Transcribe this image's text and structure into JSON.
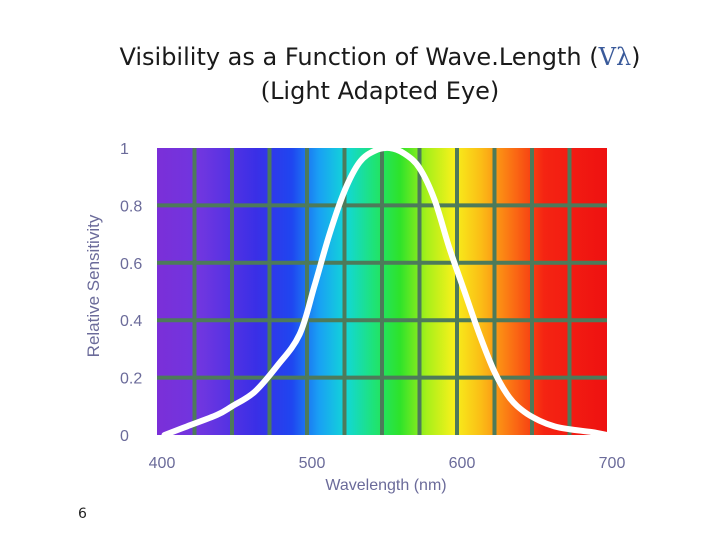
{
  "slide": {
    "title_line1_main": "Visibility as a Function of Wave.Length (",
    "title_line1_symbol": "Vλ",
    "title_line1_close": ")",
    "title_line2_open": "(",
    "title_line2_main": "Light Adapted Eye)",
    "slide_number": "6"
  },
  "chart_data": {
    "type": "line",
    "title": "",
    "xlabel": "Wavelength (nm)",
    "ylabel": "Relative Sensitivity",
    "xlim": [
      400,
      700
    ],
    "ylim": [
      0,
      1
    ],
    "x_ticks": [
      400,
      500,
      600,
      700
    ],
    "x_tick_labels": [
      "400",
      "500",
      "600",
      "700"
    ],
    "y_ticks": [
      0,
      0.2,
      0.4,
      0.6,
      0.8,
      1
    ],
    "y_tick_labels": [
      "0",
      "0.2",
      "0.4",
      "0.6",
      "0.8",
      "1"
    ],
    "grid": true,
    "background": "visible spectrum gradient",
    "series": [
      {
        "color": "#ffffff",
        "x": [
          405,
          420,
          440,
          450,
          465,
          480,
          495,
          505,
          515,
          525,
          535,
          545,
          555,
          565,
          575,
          585,
          595,
          605,
          615,
          625,
          635,
          645,
          655,
          665,
          675,
          690,
          700
        ],
        "y": [
          0.0,
          0.03,
          0.07,
          0.1,
          0.15,
          0.24,
          0.35,
          0.52,
          0.7,
          0.85,
          0.95,
          0.99,
          1.0,
          0.98,
          0.93,
          0.82,
          0.65,
          0.5,
          0.35,
          0.22,
          0.13,
          0.08,
          0.05,
          0.03,
          0.02,
          0.01,
          0.0
        ]
      }
    ]
  }
}
